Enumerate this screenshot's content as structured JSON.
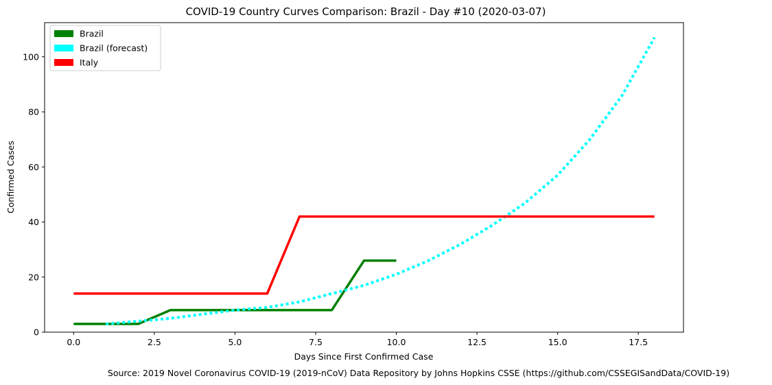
{
  "chart_data": {
    "type": "line",
    "title": "COVID-19 Country Curves Comparison: Brazil - Day #10 (2020-03-07)",
    "xlabel": "Days Since First Confirmed Case",
    "ylabel": "Confirmed Cases",
    "xlim": [
      -0.9,
      18.9
    ],
    "ylim": [
      0,
      112.4
    ],
    "xticks": [
      0,
      2.5,
      5,
      7.5,
      10,
      12.5,
      15,
      17.5
    ],
    "xtick_labels": [
      "0.0",
      "2.5",
      "5.0",
      "7.5",
      "10.0",
      "12.5",
      "15.0",
      "17.5"
    ],
    "yticks": [
      0,
      20,
      40,
      60,
      80,
      100
    ],
    "ytick_labels": [
      "0",
      "20",
      "40",
      "60",
      "80",
      "100"
    ],
    "grid": false,
    "legend": {
      "position": "top-left"
    },
    "series": [
      {
        "name": "Brazil",
        "color": "#008000",
        "style": "solid",
        "x": [
          0,
          1,
          2,
          3,
          4,
          5,
          6,
          7,
          8,
          9,
          10
        ],
        "y": [
          3,
          3,
          3,
          8,
          8,
          8,
          8,
          8,
          8,
          26,
          26
        ]
      },
      {
        "name": "Brazil (forecast)",
        "color": "#00ffff",
        "style": "dotted",
        "x": [
          1,
          2,
          3,
          4,
          5,
          6,
          7,
          8,
          9,
          10,
          11,
          12,
          13,
          14,
          15,
          16,
          17,
          18
        ],
        "y": [
          3,
          4,
          5,
          6.5,
          8,
          9,
          11,
          14,
          17,
          21,
          26,
          32,
          39,
          47,
          57,
          70,
          86,
          107
        ]
      },
      {
        "name": "Italy",
        "color": "#ff0000",
        "style": "solid",
        "x": [
          0,
          1,
          2,
          3,
          4,
          5,
          6,
          7,
          8,
          9,
          10,
          11,
          12,
          13,
          14,
          15,
          16,
          17,
          18
        ],
        "y": [
          14,
          14,
          14,
          14,
          14,
          14,
          14,
          42,
          42,
          42,
          42,
          42,
          42,
          42,
          42,
          42,
          42,
          42,
          42
        ]
      }
    ],
    "annotation": "Source: 2019 Novel Coronavirus COVID-19 (2019-nCoV) Data Repository by Johns Hopkins CSSE (https://github.com/CSSEGISandData/COVID-19)"
  }
}
